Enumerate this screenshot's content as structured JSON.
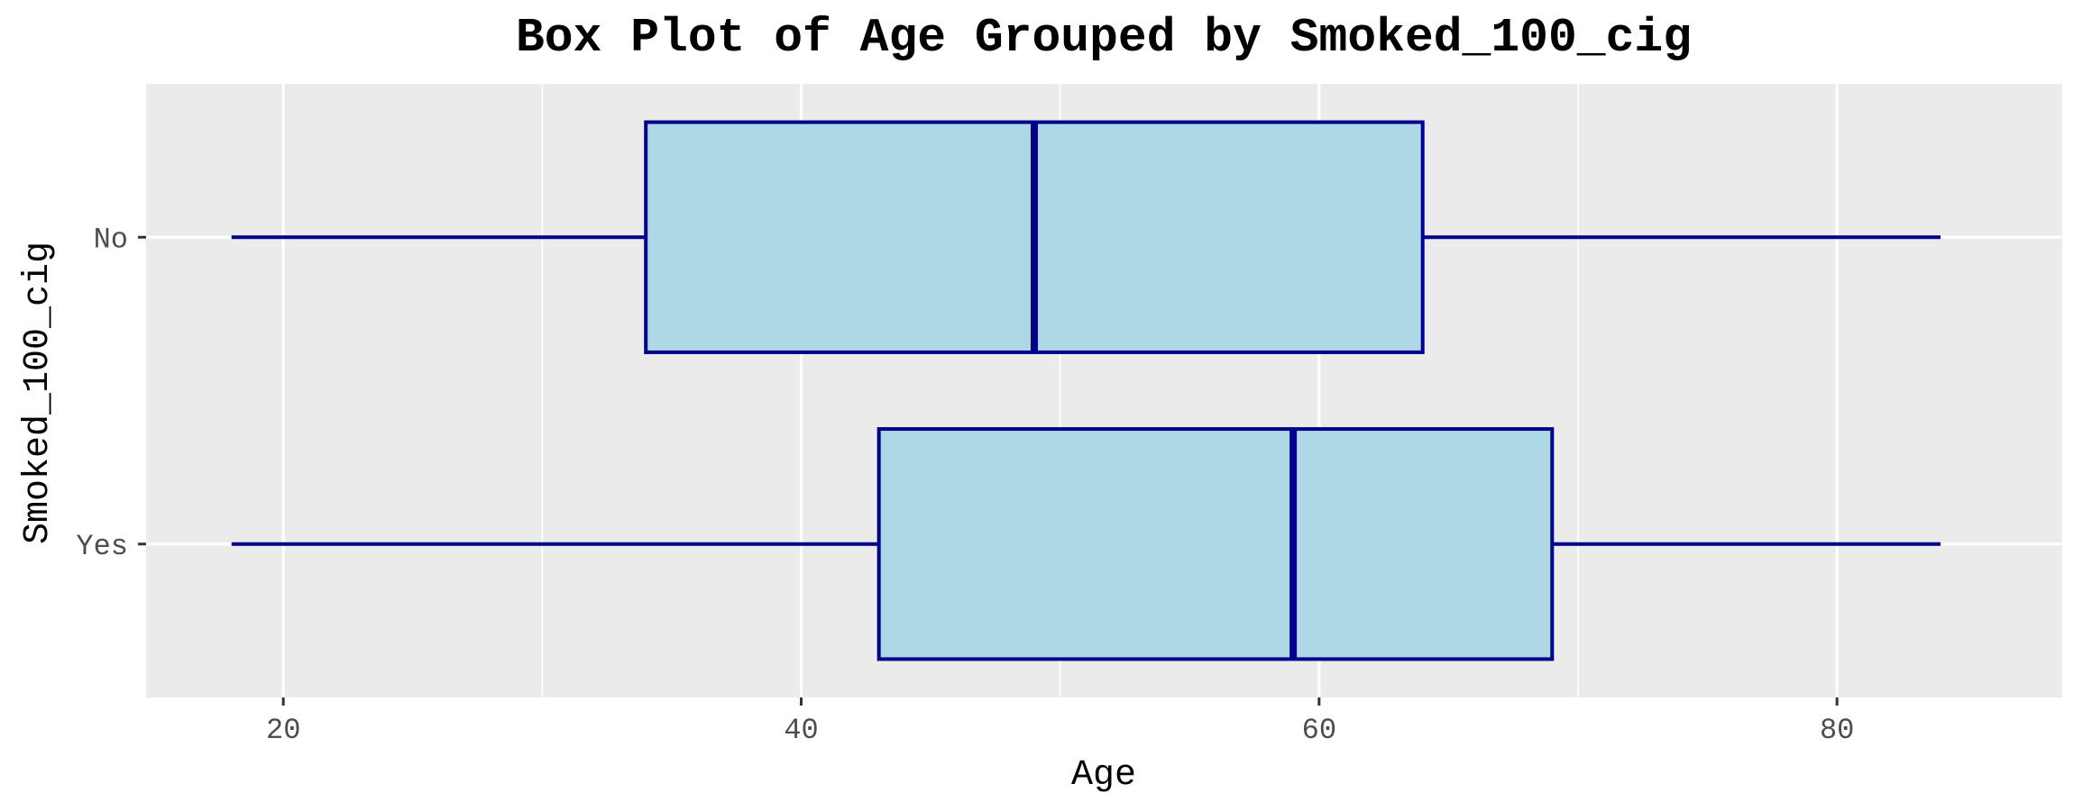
{
  "chart_data": {
    "type": "boxplot",
    "orientation": "horizontal",
    "title": "Box Plot of Age Grouped by Smoked_100_cig",
    "xlabel": "Age",
    "ylabel": "Smoked_100_cig",
    "xlim": [
      14.7,
      88.7
    ],
    "x_ticks": [
      20,
      40,
      60,
      80
    ],
    "x_tick_labels": [
      "20",
      "40",
      "60",
      "80"
    ],
    "categories": [
      "No",
      "Yes"
    ],
    "boxes": [
      {
        "category": "No",
        "min": 18,
        "q1": 34,
        "median": 49,
        "q3": 64,
        "max": 84
      },
      {
        "category": "Yes",
        "min": 18,
        "q1": 43,
        "median": 59,
        "q3": 69,
        "max": 84
      }
    ],
    "grid": true,
    "colors": {
      "panel_background": "#ebebeb",
      "grid_major": "#ffffff",
      "grid_minor": "#ffffff",
      "box_fill": "#add8e6",
      "box_stroke": "#00008b",
      "whisker": "#00008b",
      "median": "#00008b",
      "tick_label": "#4d4d4d",
      "tick_mark": "#333333"
    }
  }
}
